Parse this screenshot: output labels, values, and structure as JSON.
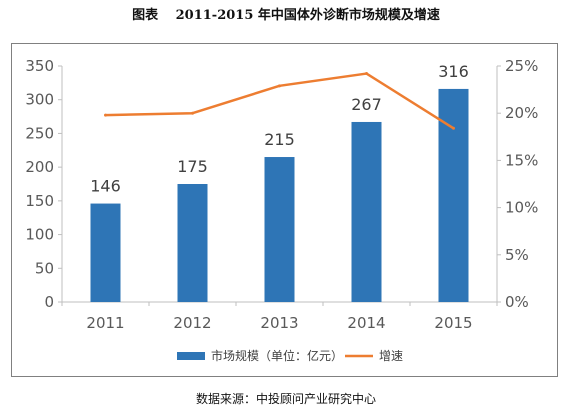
{
  "title": "图表　 2011-2015 年中国体外诊断市场规模及增速",
  "source": "数据来源：中投顾问产业研究中心",
  "chart_data": {
    "type": "bar",
    "categories": [
      "2011",
      "2012",
      "2013",
      "2014",
      "2015"
    ],
    "series": [
      {
        "name": "市场规模（单位：亿元）",
        "type": "bar",
        "axis": "left",
        "values": [
          146,
          175,
          215,
          267,
          316
        ],
        "color": "#2E75B6"
      },
      {
        "name": "增速",
        "type": "line",
        "axis": "right",
        "values": [
          19.8,
          20.0,
          22.9,
          24.2,
          18.4
        ],
        "color": "#ED7D31"
      }
    ],
    "data_labels": [
      "146",
      "175",
      "215",
      "267",
      "316"
    ],
    "y_left": {
      "ylim": [
        0,
        350
      ],
      "ticks": [
        "0",
        "50",
        "100",
        "150",
        "200",
        "250",
        "300",
        "350"
      ]
    },
    "y_right": {
      "ylim": [
        0,
        25
      ],
      "ticks": [
        "0%",
        "5%",
        "10%",
        "15%",
        "20%",
        "25%"
      ]
    },
    "legend_position": "bottom",
    "grid": false
  }
}
